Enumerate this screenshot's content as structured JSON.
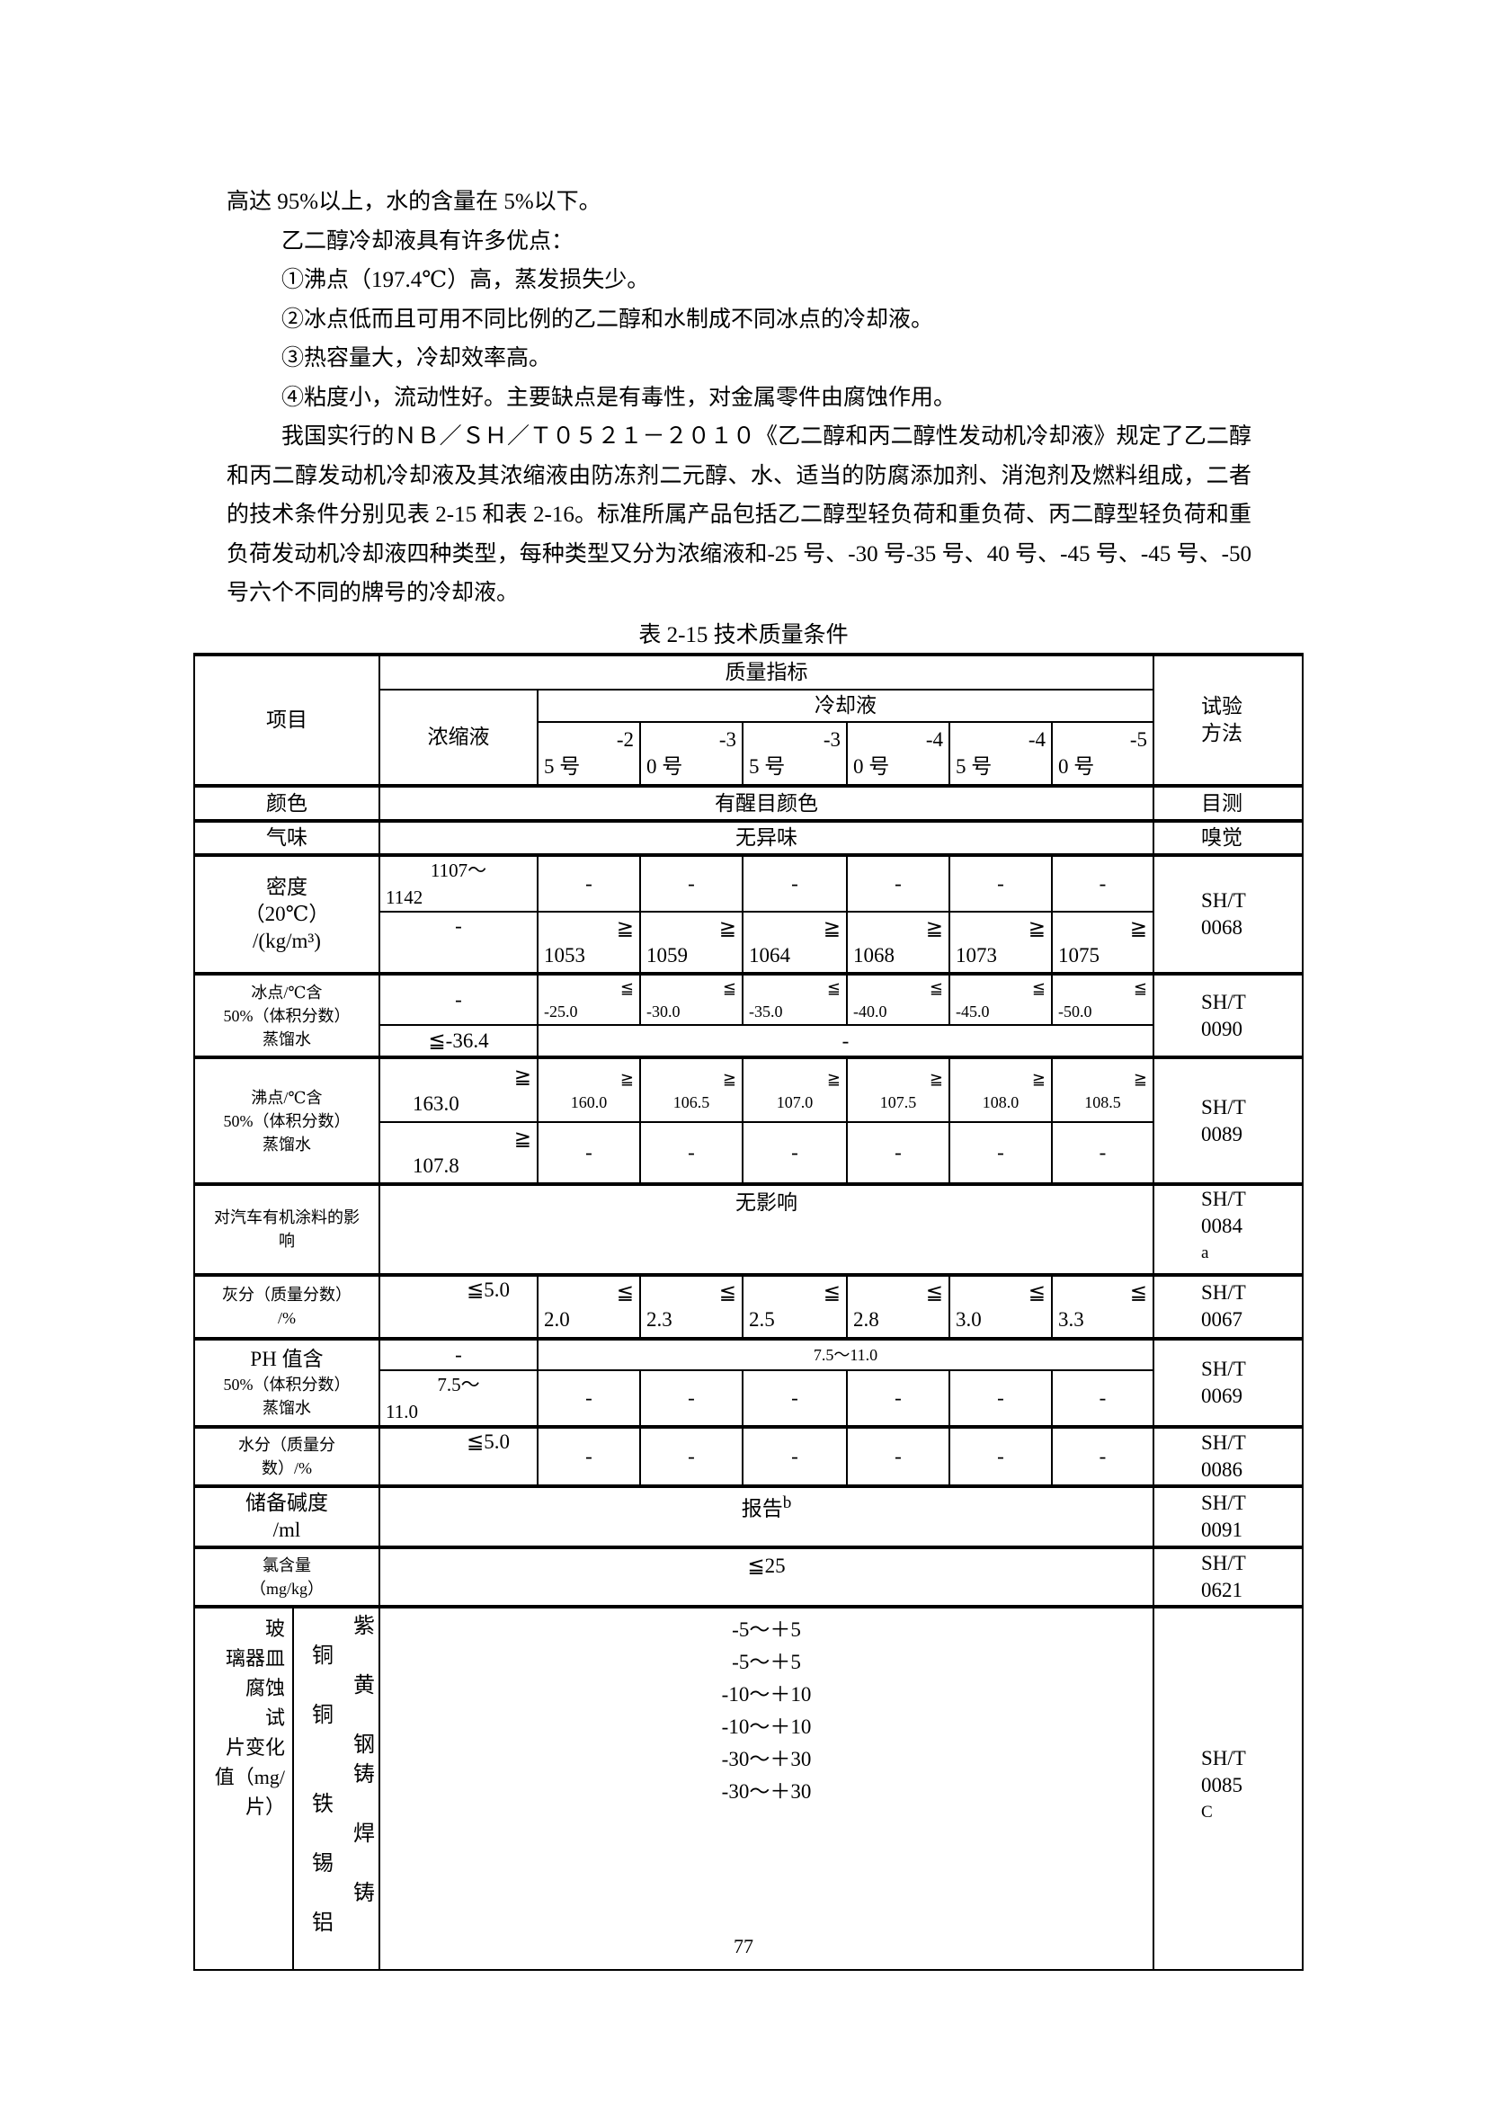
{
  "paragraphs": [
    "高达 95%以上，水的含量在 5%以下。",
    "乙二醇冷却液具有许多优点：",
    "①沸点（197.4℃）高，蒸发损失少。",
    "②冰点低而且可用不同比例的乙二醇和水制成不同冰点的冷却液。",
    "③热容量大，冷却效率高。",
    "④粘度小，流动性好。主要缺点是有毒性，对金属零件由腐蚀作用。",
    "我国实行的ＮＢ／ＳＨ／Ｔ０５２１－２０１０《乙二醇和丙二醇性发动机冷却液》规定了乙二醇和丙二醇发动机冷却液及其浓缩液由防冻剂二元醇、水、适当的防腐添加剂、消泡剂及燃料组成，二者的技术条件分别见表 2-15 和表 2-16。标准所属产品包括乙二醇型轻负荷和重负荷、丙二醇型轻负荷和重负荷发动机冷却液四种类型，每种类型又分为浓缩液和-25 号、-30 号-35 号、40 号、-45 号、-45 号、-50 号六个不同的牌号的冷却液。"
  ],
  "table": {
    "caption": "表 2-15  技术质量条件",
    "header": {
      "item": "项目",
      "quality": "质量指标",
      "concentrate": "浓缩液",
      "coolant": "冷却液",
      "method": [
        "试验",
        "方法"
      ],
      "grades": [
        [
          "-2",
          "5 号"
        ],
        [
          "-3",
          "0 号"
        ],
        [
          "-3",
          "5 号"
        ],
        [
          "-4",
          "0 号"
        ],
        [
          "-4",
          "5 号"
        ],
        [
          "-5",
          "0 号"
        ]
      ]
    },
    "color": {
      "label": "颜色",
      "value": "有醒目颜色",
      "method": "目测"
    },
    "odor": {
      "label": "气味",
      "value": "无异味",
      "method": "嗅觉"
    },
    "density": {
      "label": [
        "密度",
        "（20℃）",
        "/(kg/m³)"
      ],
      "row1": {
        "concentrate": [
          "1107～",
          "1142"
        ],
        "grades": [
          "-",
          "-",
          "-",
          "-",
          "-",
          "-"
        ]
      },
      "row2": {
        "concentrate": "-",
        "grades": [
          [
            "≧",
            "1053"
          ],
          [
            "≧",
            "1059"
          ],
          [
            "≧",
            "1064"
          ],
          [
            "≧",
            "1068"
          ],
          [
            "≧",
            "1073"
          ],
          [
            "≧",
            "1075"
          ]
        ]
      },
      "method": [
        "SH/T",
        "0068"
      ]
    },
    "freezing": {
      "label": [
        "冰点/℃含",
        "50%（体积分数）",
        "蒸馏水"
      ],
      "row1": {
        "concentrate": "-",
        "grades": [
          [
            "≦",
            "-25.0"
          ],
          [
            "≦",
            "-30.0"
          ],
          [
            "≦",
            "-35.0"
          ],
          [
            "≦",
            "-40.0"
          ],
          [
            "≦",
            "-45.0"
          ],
          [
            "≦",
            "-50.0"
          ]
        ]
      },
      "row2": {
        "concentrate": "≦-36.4",
        "merged": "-"
      },
      "method": [
        "SH/T",
        "0090"
      ]
    },
    "boiling": {
      "label": [
        "沸点/℃含",
        "50%（体积分数）",
        "蒸馏水"
      ],
      "row1": {
        "concentrate": [
          "≧",
          "163.0"
        ],
        "grades": [
          [
            "≧",
            "160.0"
          ],
          [
            "≧",
            "106.5"
          ],
          [
            "≧",
            "107.0"
          ],
          [
            "≧",
            "107.5"
          ],
          [
            "≧",
            "108.0"
          ],
          [
            "≧",
            "108.5"
          ]
        ]
      },
      "row2": {
        "concentrate": [
          "≧",
          "107.8"
        ],
        "grades": [
          "-",
          "-",
          "-",
          "-",
          "-",
          "-"
        ]
      },
      "method": [
        "SH/T",
        "0089"
      ]
    },
    "coating": {
      "label": [
        "对汽车有机涂料的影",
        "响"
      ],
      "value": "无影响",
      "method": [
        "SH/T",
        "0084",
        "a"
      ]
    },
    "ash": {
      "label": [
        "灰分（质量分数）",
        "/%"
      ],
      "concentrate": "≦5.0",
      "grades": [
        [
          "≦",
          "2.0"
        ],
        [
          "≦",
          "2.3"
        ],
        [
          "≦",
          "2.5"
        ],
        [
          "≦",
          "2.8"
        ],
        [
          "≦",
          "3.0"
        ],
        [
          "≦",
          "3.3"
        ]
      ],
      "method": [
        "SH/T",
        "0067"
      ]
    },
    "ph": {
      "label": [
        "PH 值含",
        "50%（体积分数）",
        "蒸馏水"
      ],
      "row1": {
        "concentrate": "-",
        "merged": "7.5～11.0"
      },
      "row2": {
        "concentrate": [
          "7.5～",
          "11.0"
        ],
        "grades": [
          "-",
          "-",
          "-",
          "-",
          "-",
          "-"
        ]
      },
      "method": [
        "SH/T",
        "0069"
      ]
    },
    "water": {
      "label": [
        "水分（质量分",
        "数）/%"
      ],
      "concentrate": "≦5.0",
      "grades": [
        "-",
        "-",
        "-",
        "-",
        "-",
        "-"
      ],
      "method": [
        "SH/T",
        "0086"
      ]
    },
    "alkalinity": {
      "label": [
        "储备碱度",
        "/ml"
      ],
      "value": "报告",
      "note": "b",
      "method": [
        "SH/T",
        "0091"
      ]
    },
    "chloride": {
      "label": [
        "氯含量",
        "（mg/kg）"
      ],
      "value": "≦25",
      "method": [
        "SH/T",
        "0621"
      ]
    },
    "glassware": {
      "label": [
        "玻",
        "璃器皿",
        "腐蚀",
        "试",
        "片变化",
        "值（mg/",
        "片）"
      ],
      "metals_chars": [
        "紫",
        "铜",
        "黄",
        "铜",
        "钢",
        "铸",
        "铁",
        "焊",
        "锡",
        "铸",
        "铝"
      ],
      "values": [
        "-5～＋5",
        "-5～＋5",
        "-10～＋10",
        "-10～＋10",
        "-30～＋30",
        "-30～＋30"
      ],
      "method": [
        "SH/T",
        "0085",
        "C"
      ]
    }
  },
  "page_number": "77"
}
